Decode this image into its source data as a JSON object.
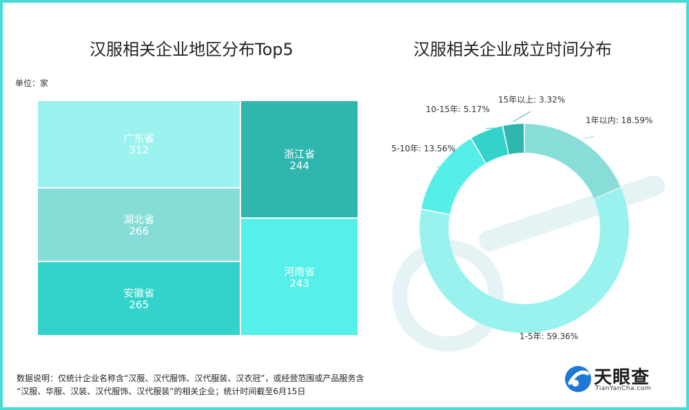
{
  "treemap": {
    "title": "汉服相关企业地区分布Top5",
    "unit": "单位：家",
    "chart_data": {
      "type": "treemap",
      "title": "汉服相关企业地区分布Top5",
      "unit": "单位：家",
      "categories": [
        "广东省",
        "湖北省",
        "安徽省",
        "浙江省",
        "河南省"
      ],
      "values": [
        312,
        266,
        265,
        244,
        243
      ]
    },
    "colors": [
      "#9bf2ef",
      "#86ddd8",
      "#33d3cb",
      "#2fb6ae",
      "#55f0e8"
    ]
  },
  "donut": {
    "title": "汉服相关企业成立时间分布",
    "chart_data": {
      "type": "pie",
      "title": "汉服相关企业成立时间分布",
      "categories": [
        "1年以内",
        "1-5年",
        "5-10年",
        "10-15年",
        "15年以上"
      ],
      "values": [
        18.59,
        59.36,
        13.56,
        5.17,
        3.32
      ]
    },
    "labels": [
      "1年以内: 18.59%",
      "1-5年: 59.36%",
      "5-10年: 13.56%",
      "10-15年: 5.17%",
      "15年以上: 3.32%"
    ],
    "colors": [
      "#89ddd9",
      "#9af2ef",
      "#56eee8",
      "#33d3cb",
      "#2fb6ae"
    ]
  },
  "footer": {
    "note_line1": "数据说明：仅统计企业名称含“汉服、汉代服饰、汉代服装、汉衣冠”，或经营范围或产品服务含",
    "note_line2": "“汉服、华服、汉装、汉代服饰、汉代服装”的相关企业；统计时间截至6月15日"
  },
  "brand": {
    "name": "天眼查",
    "url": "TianYanCha.com",
    "logo_icon": "tianyancha-logo-icon"
  }
}
